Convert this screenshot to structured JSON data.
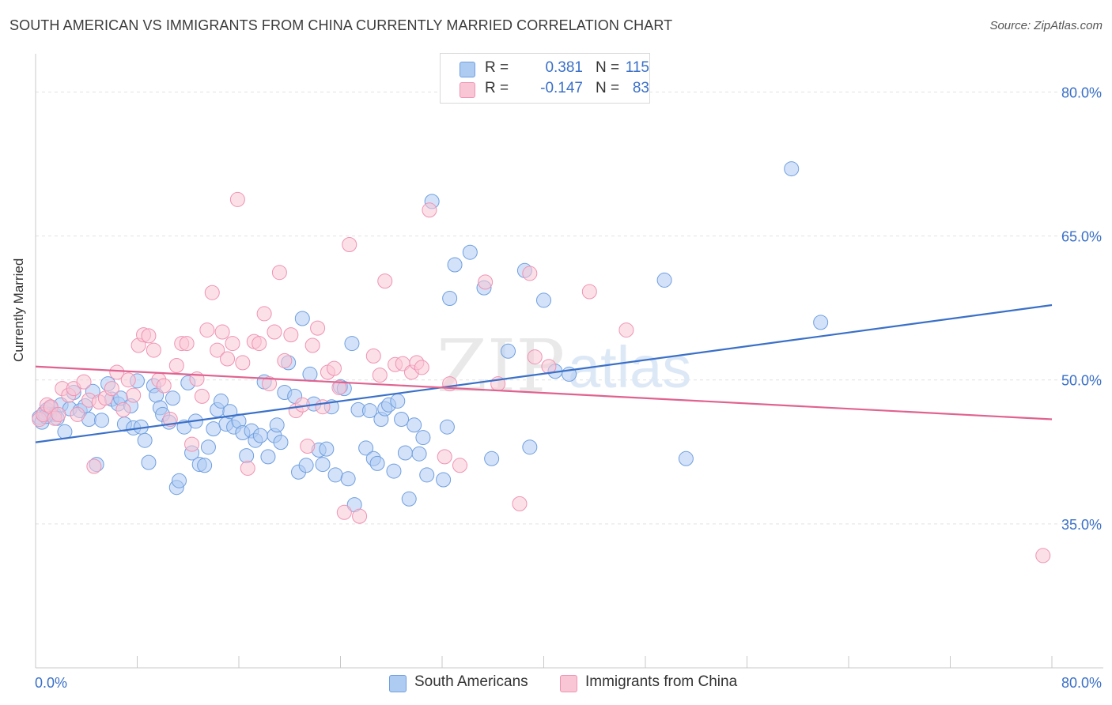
{
  "title": "SOUTH AMERICAN VS IMMIGRANTS FROM CHINA CURRENTLY MARRIED CORRELATION CHART",
  "source": "Source: ZipAtlas.com",
  "watermark": {
    "zip": "ZIP",
    "atlas": "atlas"
  },
  "legend": {
    "rows": [
      {
        "r_label": "R =",
        "r_value": "0.381",
        "n_label": "N =",
        "n_value": "115",
        "color": "#aecbf2",
        "border": "#6f9fe0"
      },
      {
        "r_label": "R =",
        "r_value": "-0.147",
        "n_label": "N =",
        "n_value": "83",
        "color": "#f9c6d6",
        "border": "#ef93b3"
      }
    ]
  },
  "bottom_legend": [
    {
      "label": "South Americans",
      "color": "#aecbf2",
      "border": "#6f9fe0"
    },
    {
      "label": "Immigrants from China",
      "color": "#f9c6d6",
      "border": "#ef93b3"
    }
  ],
  "colors": {
    "blue": "#3a70c8",
    "pink": "#e0628f",
    "grid": "#e2e2e2",
    "axis": "#c8c8c8",
    "tick_text": "#3a70c8"
  },
  "chart_data": {
    "type": "scatter",
    "title": "SOUTH AMERICAN VS IMMIGRANTS FROM CHINA CURRENTLY MARRIED CORRELATION CHART",
    "xlabel": "",
    "ylabel": "Currently Married",
    "xlim": [
      0,
      80
    ],
    "ylim": [
      20,
      83
    ],
    "x_tick_labels": [
      "0.0%",
      "80.0%"
    ],
    "y_ticks": [
      35,
      50,
      65,
      80
    ],
    "y_tick_labels": [
      "35.0%",
      "50.0%",
      "65.0%",
      "80.0%"
    ],
    "grid": true,
    "legend_position": "top-center",
    "series": [
      {
        "name": "South Americans",
        "color": "#aecbf2",
        "stroke": "#6f9fe0",
        "trend": {
          "x": [
            0,
            80
          ],
          "y": [
            43.5,
            57.8
          ],
          "color": "#3a70c8"
        },
        "points": [
          [
            0.3,
            46.1
          ],
          [
            0.5,
            45.6
          ],
          [
            0.7,
            46.6
          ],
          [
            0.9,
            46.9
          ],
          [
            1.1,
            46.4
          ],
          [
            1.2,
            47.1
          ],
          [
            1.5,
            46.4
          ],
          [
            1.7,
            46.0
          ],
          [
            2.0,
            47.4
          ],
          [
            2.3,
            44.6
          ],
          [
            2.7,
            47.0
          ],
          [
            3.0,
            48.7
          ],
          [
            3.5,
            46.8
          ],
          [
            3.9,
            47.3
          ],
          [
            4.2,
            45.9
          ],
          [
            4.5,
            48.8
          ],
          [
            4.8,
            41.2
          ],
          [
            5.2,
            45.8
          ],
          [
            5.7,
            49.6
          ],
          [
            6.0,
            48.0
          ],
          [
            6.5,
            47.5
          ],
          [
            6.7,
            48.1
          ],
          [
            7.0,
            45.4
          ],
          [
            7.5,
            47.3
          ],
          [
            7.7,
            45.0
          ],
          [
            8.0,
            49.9
          ],
          [
            8.3,
            45.1
          ],
          [
            8.6,
            43.7
          ],
          [
            8.9,
            41.4
          ],
          [
            9.3,
            49.4
          ],
          [
            9.5,
            48.4
          ],
          [
            9.8,
            47.1
          ],
          [
            10.0,
            46.4
          ],
          [
            10.5,
            45.6
          ],
          [
            10.8,
            48.1
          ],
          [
            11.1,
            38.8
          ],
          [
            11.3,
            39.5
          ],
          [
            11.7,
            45.1
          ],
          [
            12.0,
            49.7
          ],
          [
            12.3,
            42.4
          ],
          [
            12.6,
            45.7
          ],
          [
            12.9,
            41.2
          ],
          [
            13.3,
            41.1
          ],
          [
            13.6,
            43.0
          ],
          [
            14.0,
            44.9
          ],
          [
            14.3,
            46.9
          ],
          [
            14.6,
            47.8
          ],
          [
            15.0,
            45.4
          ],
          [
            15.3,
            46.7
          ],
          [
            15.6,
            45.1
          ],
          [
            16.0,
            45.7
          ],
          [
            16.3,
            44.5
          ],
          [
            16.6,
            42.1
          ],
          [
            17.0,
            44.7
          ],
          [
            17.3,
            43.7
          ],
          [
            17.7,
            44.2
          ],
          [
            18.0,
            49.8
          ],
          [
            18.3,
            42.0
          ],
          [
            18.8,
            44.2
          ],
          [
            19.0,
            45.3
          ],
          [
            19.3,
            43.5
          ],
          [
            19.6,
            48.7
          ],
          [
            19.9,
            51.8
          ],
          [
            20.4,
            48.3
          ],
          [
            20.7,
            40.4
          ],
          [
            21.0,
            56.4
          ],
          [
            21.3,
            41.1
          ],
          [
            21.6,
            50.6
          ],
          [
            21.9,
            47.5
          ],
          [
            22.3,
            42.7
          ],
          [
            22.6,
            41.2
          ],
          [
            22.9,
            42.8
          ],
          [
            23.3,
            47.2
          ],
          [
            23.6,
            40.1
          ],
          [
            24.0,
            49.3
          ],
          [
            24.3,
            49.1
          ],
          [
            24.6,
            39.7
          ],
          [
            24.9,
            53.8
          ],
          [
            25.1,
            37.0
          ],
          [
            25.4,
            46.9
          ],
          [
            26.0,
            42.9
          ],
          [
            26.3,
            46.8
          ],
          [
            26.6,
            41.8
          ],
          [
            26.9,
            41.3
          ],
          [
            27.2,
            45.9
          ],
          [
            27.5,
            47.0
          ],
          [
            27.8,
            47.4
          ],
          [
            28.2,
            40.5
          ],
          [
            28.5,
            47.8
          ],
          [
            28.8,
            45.9
          ],
          [
            29.1,
            42.4
          ],
          [
            29.4,
            37.6
          ],
          [
            29.8,
            45.3
          ],
          [
            30.2,
            42.3
          ],
          [
            30.5,
            44.0
          ],
          [
            30.8,
            40.1
          ],
          [
            31.2,
            68.6
          ],
          [
            32.1,
            39.6
          ],
          [
            32.4,
            45.1
          ],
          [
            32.6,
            58.5
          ],
          [
            33.0,
            62.0
          ],
          [
            34.2,
            63.3
          ],
          [
            35.3,
            59.6
          ],
          [
            35.9,
            41.8
          ],
          [
            37.2,
            53.0
          ],
          [
            38.5,
            61.4
          ],
          [
            38.9,
            43.0
          ],
          [
            40.0,
            58.3
          ],
          [
            40.9,
            50.9
          ],
          [
            42.0,
            50.6
          ],
          [
            49.5,
            60.4
          ],
          [
            51.2,
            41.8
          ],
          [
            59.5,
            72.0
          ],
          [
            61.8,
            56.0
          ],
          [
            0.8,
            46.2
          ]
        ]
      },
      {
        "name": "Immigrants from China",
        "color": "#f9c6d6",
        "stroke": "#ef93b3",
        "trend": {
          "x": [
            0,
            80
          ],
          "y": [
            51.4,
            45.9
          ],
          "color": "#e0628f"
        },
        "points": [
          [
            0.3,
            45.9
          ],
          [
            0.6,
            46.4
          ],
          [
            0.9,
            47.4
          ],
          [
            1.2,
            47.2
          ],
          [
            1.5,
            46.0
          ],
          [
            1.8,
            46.4
          ],
          [
            2.1,
            49.1
          ],
          [
            2.6,
            48.4
          ],
          [
            3.0,
            49.1
          ],
          [
            3.3,
            46.4
          ],
          [
            3.8,
            49.8
          ],
          [
            4.2,
            47.9
          ],
          [
            4.6,
            41.0
          ],
          [
            5.0,
            47.7
          ],
          [
            5.5,
            48.1
          ],
          [
            6.0,
            49.1
          ],
          [
            6.4,
            50.8
          ],
          [
            6.9,
            46.9
          ],
          [
            7.3,
            50.0
          ],
          [
            7.7,
            48.4
          ],
          [
            8.1,
            53.6
          ],
          [
            8.5,
            54.7
          ],
          [
            8.9,
            54.6
          ],
          [
            9.3,
            53.1
          ],
          [
            9.7,
            50.0
          ],
          [
            10.1,
            49.4
          ],
          [
            10.6,
            45.9
          ],
          [
            11.1,
            51.5
          ],
          [
            11.5,
            53.8
          ],
          [
            11.9,
            53.8
          ],
          [
            12.3,
            43.3
          ],
          [
            12.7,
            50.1
          ],
          [
            13.1,
            48.3
          ],
          [
            13.5,
            55.2
          ],
          [
            13.9,
            59.1
          ],
          [
            14.3,
            53.1
          ],
          [
            14.7,
            55.0
          ],
          [
            15.1,
            52.2
          ],
          [
            15.5,
            53.8
          ],
          [
            15.9,
            68.8
          ],
          [
            16.3,
            51.8
          ],
          [
            16.7,
            40.8
          ],
          [
            17.2,
            54.0
          ],
          [
            17.6,
            53.8
          ],
          [
            18.0,
            56.9
          ],
          [
            18.4,
            49.6
          ],
          [
            18.8,
            55.0
          ],
          [
            19.2,
            61.2
          ],
          [
            19.6,
            52.0
          ],
          [
            20.1,
            54.7
          ],
          [
            20.5,
            46.8
          ],
          [
            21.0,
            47.4
          ],
          [
            21.4,
            43.1
          ],
          [
            21.8,
            53.6
          ],
          [
            22.2,
            55.4
          ],
          [
            22.6,
            47.2
          ],
          [
            23.0,
            50.8
          ],
          [
            23.5,
            51.2
          ],
          [
            23.9,
            49.2
          ],
          [
            24.3,
            36.2
          ],
          [
            24.7,
            64.1
          ],
          [
            25.5,
            35.8
          ],
          [
            26.6,
            52.5
          ],
          [
            27.1,
            50.5
          ],
          [
            27.5,
            60.3
          ],
          [
            28.3,
            51.6
          ],
          [
            28.9,
            51.7
          ],
          [
            29.6,
            50.8
          ],
          [
            30.0,
            51.8
          ],
          [
            30.4,
            51.3
          ],
          [
            31.0,
            67.7
          ],
          [
            32.2,
            42.0
          ],
          [
            32.6,
            49.6
          ],
          [
            33.4,
            41.1
          ],
          [
            35.4,
            60.2
          ],
          [
            36.4,
            49.6
          ],
          [
            38.1,
            37.1
          ],
          [
            38.9,
            61.1
          ],
          [
            39.3,
            52.4
          ],
          [
            40.4,
            51.4
          ],
          [
            43.6,
            59.2
          ],
          [
            46.5,
            55.2
          ],
          [
            79.3,
            31.7
          ]
        ]
      },
      {
        "name": "",
        "note": "",
        "points": []
      }
    ]
  }
}
